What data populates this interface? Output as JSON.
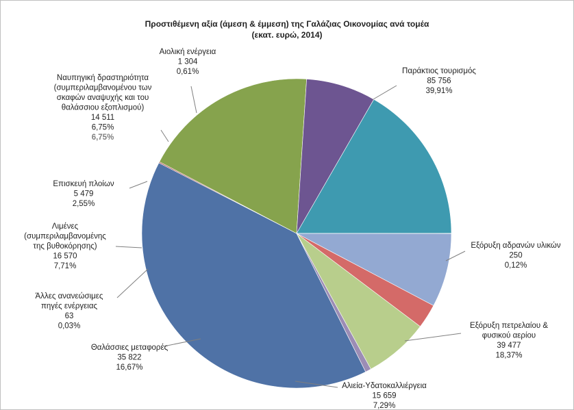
{
  "chart_data": {
    "type": "pie",
    "title": "Προστιθέμενη αξία (άμεση & έμμεση) της Γαλάζιας Οικονομίας ανά τομέα",
    "subtitle": "(εκατ. ευρώ, 2014)",
    "start_angle_deg": 153.5,
    "direction": "clockwise",
    "slices": [
      {
        "label_lines": [
          "Παράκτιος τουρισμός"
        ],
        "value": 85756,
        "value_text": "85 756",
        "percent_text": "39,91%",
        "color": "#4F72A6"
      },
      {
        "label_lines": [
          "Εξόρυξη αδρανών υλικών"
        ],
        "value": 250,
        "value_text": "250",
        "percent_text": "0,12%",
        "color": "#A64A46"
      },
      {
        "label_lines": [
          "Εξόρυξη πετρελαίου &",
          "φυσικού αερίου"
        ],
        "value": 39477,
        "value_text": "39 477",
        "percent_text": "18,37%",
        "color": "#86A34D"
      },
      {
        "label_lines": [
          "Αλιεία-Υδατοκαλλιέργεια"
        ],
        "value": 15659,
        "value_text": "15 659",
        "percent_text": "7,29%",
        "color": "#6D5591"
      },
      {
        "label_lines": [
          "Θαλάσσιες μεταφορές"
        ],
        "value": 35822,
        "value_text": "35 822",
        "percent_text": "16,67%",
        "color": "#3E9AB0"
      },
      {
        "label_lines": [
          "Άλλες ανανεώσιμες",
          "πηγές ενέργειας"
        ],
        "value": 63,
        "value_text": "63",
        "percent_text": "0,03%",
        "color": "#E08A3E"
      },
      {
        "label_lines": [
          "Λιμένες",
          "(συμπεριλαμβανομένης",
          "της βυθοκόρησης)"
        ],
        "value": 16570,
        "value_text": "16 570",
        "percent_text": "7,71%",
        "color": "#93A9D2"
      },
      {
        "label_lines": [
          "Επισκευή πλοίων"
        ],
        "value": 5479,
        "value_text": "5 479",
        "percent_text": "2,55%",
        "color": "#D46A68"
      },
      {
        "label_lines": [
          "Ναυπηγική δραστηριότητα",
          "(συμπεριλαμβανομένου των",
          "σκαφών αναψυχής και του",
          "θαλάσσιου εξοπλισμού)"
        ],
        "value": 14511,
        "value_text": "14 511",
        "percent_text": "6,75%",
        "extra_text": "6,75%",
        "color": "#B8CE8C"
      },
      {
        "label_lines": [
          "Αιολική ενέργεια"
        ],
        "value": 1304,
        "value_text": "1 304",
        "percent_text": "0,61%",
        "color": "#9C8DB5"
      }
    ]
  }
}
